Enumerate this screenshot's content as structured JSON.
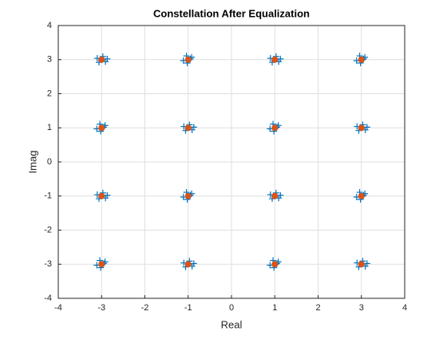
{
  "chart_data": {
    "type": "scatter",
    "title": "Constellation After Equalization",
    "xlabel": "Real",
    "ylabel": "Imag",
    "xlim": [
      -4,
      4
    ],
    "ylim": [
      -4,
      4
    ],
    "xticks": [
      -4,
      -3,
      -2,
      -1,
      0,
      1,
      2,
      3,
      4
    ],
    "yticks": [
      -4,
      -3,
      -2,
      -1,
      0,
      1,
      2,
      3,
      4
    ],
    "grid": true,
    "series": [
      {
        "color": "#0072bd",
        "marker": "+",
        "x": [
          -3.1,
          -2.91,
          -2.97,
          -3.06,
          -2.87,
          -0.92,
          -1.11,
          -1.02,
          -0.95,
          -1.04,
          0.9,
          1.09,
          1.03,
          0.94,
          1.13,
          3.08,
          2.89,
          2.98,
          3.05,
          2.96,
          -2.92,
          -3.11,
          -3.02,
          -2.95,
          -3.04,
          -1.1,
          -0.91,
          -0.97,
          -1.06,
          -0.87,
          1.08,
          0.89,
          0.98,
          1.05,
          0.96,
          2.9,
          3.09,
          3.03,
          2.94,
          3.13,
          -3.1,
          -2.91,
          -2.97,
          -3.06,
          -2.87,
          -0.92,
          -1.11,
          -1.02,
          -0.95,
          -1.04,
          0.9,
          1.09,
          1.03,
          0.94,
          1.13,
          3.08,
          2.89,
          2.98,
          3.05,
          2.96,
          -2.92,
          -3.11,
          -3.02,
          -2.95,
          -3.04,
          -1.1,
          -0.91,
          -0.97,
          -1.06,
          -0.87,
          1.08,
          0.89,
          0.98,
          1.05,
          0.96,
          2.9,
          3.09,
          3.03,
          2.94,
          3.13
        ],
        "values": [
          3.04,
          2.94,
          3.09,
          2.92,
          3.02,
          3.07,
          2.97,
          2.9,
          3.02,
          3.11,
          3.04,
          2.94,
          3.09,
          2.92,
          3.02,
          3.07,
          2.97,
          2.9,
          3.02,
          3.11,
          1.07,
          0.97,
          0.9,
          1.02,
          1.11,
          1.04,
          0.94,
          1.09,
          0.92,
          1.02,
          1.07,
          0.97,
          0.9,
          1.02,
          1.11,
          1.04,
          0.94,
          1.09,
          0.92,
          1.02,
          -0.96,
          -1.06,
          -0.91,
          -1.08,
          -0.98,
          -0.93,
          -1.03,
          -1.1,
          -0.98,
          -0.89,
          -0.96,
          -1.06,
          -0.91,
          -1.08,
          -0.98,
          -0.93,
          -1.03,
          -1.1,
          -0.98,
          -0.89,
          -2.93,
          -3.03,
          -3.1,
          -2.98,
          -2.89,
          -2.96,
          -3.06,
          -2.91,
          -3.08,
          -2.98,
          -2.93,
          -3.03,
          -3.1,
          -2.98,
          -2.89,
          -2.96,
          -3.06,
          -2.91,
          -3.08,
          -2.98
        ]
      },
      {
        "color": "#d95319",
        "marker": "dot",
        "x": [
          -3,
          -1,
          1,
          3,
          -3,
          -1,
          1,
          3,
          -3,
          -1,
          1,
          3,
          -3,
          -1,
          1,
          3
        ],
        "values": [
          3,
          3,
          3,
          3,
          1,
          1,
          1,
          1,
          -1,
          -1,
          -1,
          -1,
          -3,
          -3,
          -3,
          -3
        ]
      }
    ]
  }
}
